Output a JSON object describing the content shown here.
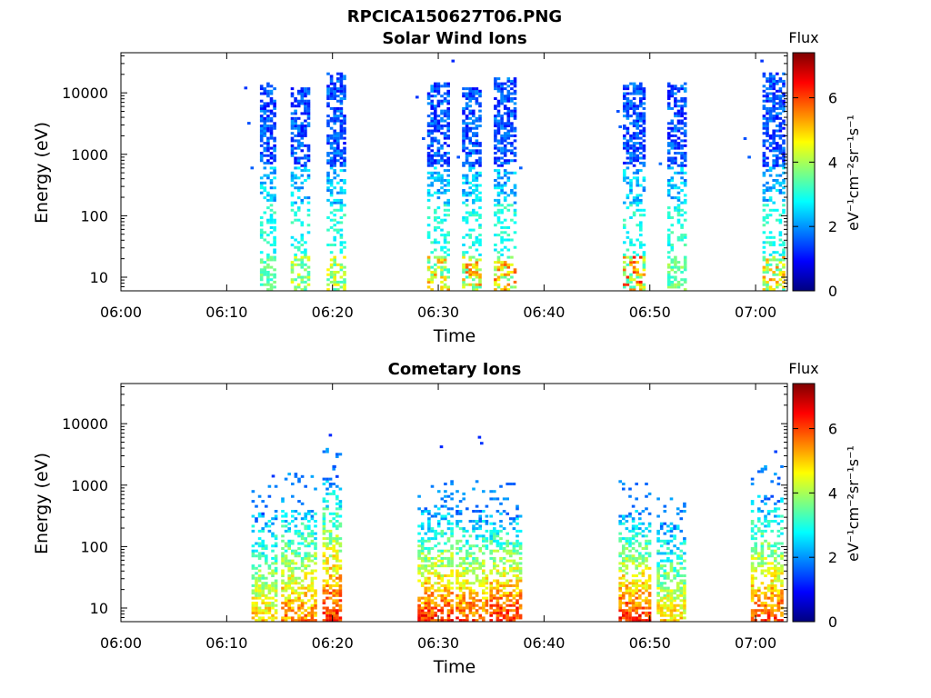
{
  "figure": {
    "title": "RPCICA150627T06.PNG"
  },
  "colorbar": {
    "title": "Flux",
    "units_label": "eV⁻¹cm⁻²sr⁻¹s⁻¹",
    "range": [
      0,
      7.4
    ],
    "ticks": [
      0,
      2,
      4,
      6
    ],
    "colormap": "jet",
    "colormap_stops": [
      "#00007f",
      "#0000ff",
      "#007fff",
      "#00ffff",
      "#7fff7f",
      "#ffff00",
      "#ff7f00",
      "#ff0000",
      "#7f0000"
    ]
  },
  "chart_data": [
    {
      "type": "heatmap",
      "title": "Solar Wind Ions",
      "xlabel": "Time",
      "ylabel": "Energy (eV)",
      "x_unit": "minutes after 06:00",
      "xlim": [
        0,
        63
      ],
      "x_ticks": [
        {
          "value": 0,
          "label": "06:00"
        },
        {
          "value": 10,
          "label": "06:10"
        },
        {
          "value": 20,
          "label": "06:20"
        },
        {
          "value": 30,
          "label": "06:30"
        },
        {
          "value": 40,
          "label": "06:40"
        },
        {
          "value": 50,
          "label": "06:50"
        },
        {
          "value": 60,
          "label": "07:00"
        }
      ],
      "y_scale": "log",
      "ylim": [
        6,
        45000
      ],
      "y_ticks": [
        {
          "value": 10,
          "label": "10"
        },
        {
          "value": 100,
          "label": "100"
        },
        {
          "value": 1000,
          "label": "1000"
        },
        {
          "value": 10000,
          "label": "10000"
        }
      ],
      "colorbar_label": "Flux",
      "bursts": [
        {
          "t_start": 13.3,
          "t_end": 14.8,
          "e_peak": 2500,
          "flux_high": 1.5,
          "flux_low": 3.0,
          "low_hot": 3.2
        },
        {
          "t_start": 16.2,
          "t_end": 17.8,
          "e_peak": 2000,
          "flux_high": 1.5,
          "flux_low": 3.0,
          "low_hot": 4.0
        },
        {
          "t_start": 19.6,
          "t_end": 21.3,
          "e_peak": 3500,
          "flux_high": 1.5,
          "flux_low": 3.0,
          "low_hot": 4.2
        },
        {
          "t_start": 29.1,
          "t_end": 31.0,
          "e_peak": 2500,
          "flux_high": 1.5,
          "flux_low": 3.0,
          "low_hot": 5.0
        },
        {
          "t_start": 32.4,
          "t_end": 34.2,
          "e_peak": 2000,
          "flux_high": 1.5,
          "flux_low": 3.0,
          "low_hot": 5.2
        },
        {
          "t_start": 35.4,
          "t_end": 37.3,
          "e_peak": 3000,
          "flux_high": 1.5,
          "flux_low": 3.0,
          "low_hot": 5.3
        },
        {
          "t_start": 47.6,
          "t_end": 49.6,
          "e_peak": 2500,
          "flux_high": 1.5,
          "flux_low": 3.0,
          "low_hot": 5.8
        },
        {
          "t_start": 51.8,
          "t_end": 53.4,
          "e_peak": 2500,
          "flux_high": 1.5,
          "flux_low": 3.0,
          "low_hot": 3.5
        },
        {
          "t_start": 60.8,
          "t_end": 62.7,
          "e_peak": 3500,
          "flux_high": 1.5,
          "flux_low": 3.0,
          "low_hot": 5.0
        }
      ],
      "isolated_points": [
        {
          "t": 11.8,
          "e": 12000,
          "flux": 1.3
        },
        {
          "t": 12.1,
          "e": 3200,
          "flux": 1.5
        },
        {
          "t": 12.4,
          "e": 600,
          "flux": 1.6
        },
        {
          "t": 28.0,
          "e": 8500,
          "flux": 1.3
        },
        {
          "t": 28.6,
          "e": 1800,
          "flux": 1.5
        },
        {
          "t": 31.4,
          "e": 33000,
          "flux": 1.2
        },
        {
          "t": 31.9,
          "e": 900,
          "flux": 1.5
        },
        {
          "t": 37.8,
          "e": 600,
          "flux": 1.6
        },
        {
          "t": 47.0,
          "e": 5000,
          "flux": 1.5
        },
        {
          "t": 47.2,
          "e": 2800,
          "flux": 1.6
        },
        {
          "t": 51.0,
          "e": 700,
          "flux": 1.7
        },
        {
          "t": 59.0,
          "e": 1800,
          "flux": 1.5
        },
        {
          "t": 59.4,
          "e": 900,
          "flux": 1.6
        },
        {
          "t": 60.6,
          "e": 33000,
          "flux": 1.3
        }
      ]
    },
    {
      "type": "heatmap",
      "title": "Cometary Ions",
      "xlabel": "Time",
      "ylabel": "Energy (eV)",
      "x_unit": "minutes after 06:00",
      "xlim": [
        0,
        63
      ],
      "x_ticks": [
        {
          "value": 0,
          "label": "06:00"
        },
        {
          "value": 10,
          "label": "06:10"
        },
        {
          "value": 20,
          "label": "06:20"
        },
        {
          "value": 30,
          "label": "06:30"
        },
        {
          "value": 40,
          "label": "06:40"
        },
        {
          "value": 50,
          "label": "06:50"
        },
        {
          "value": 60,
          "label": "07:00"
        }
      ],
      "y_scale": "log",
      "ylim": [
        6,
        45000
      ],
      "y_ticks": [
        {
          "value": 10,
          "label": "10"
        },
        {
          "value": 100,
          "label": "100"
        },
        {
          "value": 1000,
          "label": "1000"
        },
        {
          "value": 10000,
          "label": "10000"
        }
      ],
      "colorbar_label": "Flux",
      "bursts": [
        {
          "t_start": 12.5,
          "t_end": 14.9,
          "e_top": 350,
          "flux_peak": 5.0
        },
        {
          "t_start": 15.3,
          "t_end": 18.5,
          "e_top": 600,
          "flux_peak": 5.6
        },
        {
          "t_start": 19.2,
          "t_end": 21.0,
          "e_top": 1500,
          "flux_peak": 6.3
        },
        {
          "t_start": 28.2,
          "t_end": 31.6,
          "e_top": 450,
          "flux_peak": 6.2
        },
        {
          "t_start": 31.8,
          "t_end": 34.6,
          "e_top": 400,
          "flux_peak": 6.0
        },
        {
          "t_start": 35.0,
          "t_end": 37.8,
          "e_top": 350,
          "flux_peak": 6.4
        },
        {
          "t_start": 47.2,
          "t_end": 50.0,
          "e_top": 400,
          "flux_peak": 6.3
        },
        {
          "t_start": 50.8,
          "t_end": 53.4,
          "e_top": 250,
          "flux_peak": 5.0
        },
        {
          "t_start": 59.7,
          "t_end": 62.7,
          "e_top": 700,
          "flux_peak": 6.0
        }
      ],
      "isolated_points": [
        {
          "t": 14.4,
          "e": 1400,
          "flux": 1.3
        },
        {
          "t": 19.8,
          "e": 6500,
          "flux": 1.2
        },
        {
          "t": 20.2,
          "e": 2000,
          "flux": 1.5
        },
        {
          "t": 30.3,
          "e": 4200,
          "flux": 1.2
        },
        {
          "t": 33.9,
          "e": 6000,
          "flux": 1.2
        },
        {
          "t": 34.1,
          "e": 4800,
          "flux": 1.3
        },
        {
          "t": 61.9,
          "e": 3500,
          "flux": 1.4
        },
        {
          "t": 62.2,
          "e": 1300,
          "flux": 1.5
        }
      ]
    }
  ]
}
